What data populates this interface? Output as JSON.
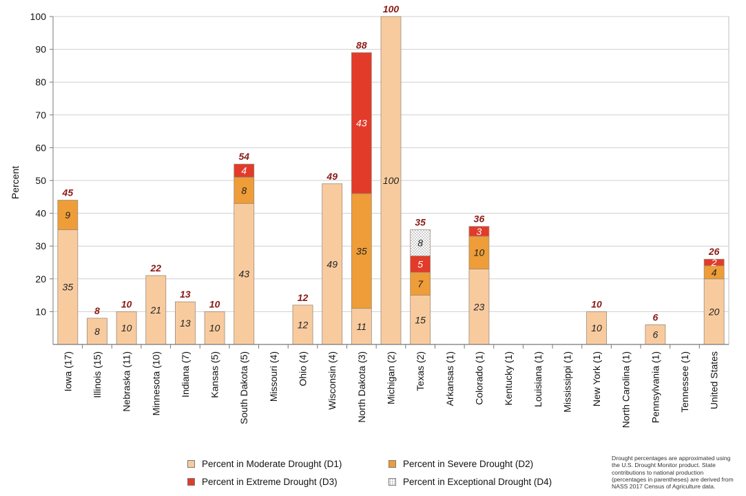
{
  "chart_data": {
    "type": "bar",
    "stacked": true,
    "ylabel": "Percent",
    "ylim": [
      0,
      100
    ],
    "yticks": [
      10,
      20,
      30,
      40,
      50,
      60,
      70,
      80,
      90,
      100
    ],
    "grid": true,
    "legend_position": "bottom",
    "categories": [
      "Iowa (17)",
      "Illinois (15)",
      "Nebraska (11)",
      "Minnesota (10)",
      "Indiana (7)",
      "Kansas (5)",
      "South Dakota (5)",
      "Missouri (4)",
      "Ohio (4)",
      "Wisconsin (4)",
      "North Dakota (3)",
      "Michigan (2)",
      "Texas (2)",
      "Arkansas (1)",
      "Colorado (1)",
      "Kentucky (1)",
      "Louisiana (1)",
      "Mississippi (1)",
      "New York (1)",
      "North Carolina (1)",
      "Pennsylvania (1)",
      "Tennessee (1)",
      "United States"
    ],
    "totals": [
      45,
      8,
      10,
      22,
      13,
      10,
      54,
      null,
      12,
      49,
      88,
      100,
      35,
      null,
      36,
      null,
      null,
      null,
      10,
      null,
      6,
      null,
      26
    ],
    "series": [
      {
        "name": "Percent in Moderate Drought (D1)",
        "color": "#f8cb9f",
        "values": [
          35,
          8,
          10,
          21,
          13,
          10,
          43,
          0,
          12,
          49,
          11,
          100,
          15,
          0,
          23,
          0,
          0,
          0,
          10,
          0,
          6,
          0,
          20
        ]
      },
      {
        "name": "Percent in Severe Drought (D2)",
        "color": "#ee9d38",
        "values": [
          9,
          0,
          0,
          0,
          0,
          0,
          8,
          0,
          0,
          0,
          35,
          0,
          7,
          0,
          10,
          0,
          0,
          0,
          0,
          0,
          0,
          0,
          4
        ]
      },
      {
        "name": "Percent in Extreme Drought (D3)",
        "color": "#e23b2a",
        "values": [
          0,
          0,
          0,
          0,
          0,
          0,
          4,
          0,
          0,
          0,
          43,
          0,
          5,
          0,
          3,
          0,
          0,
          0,
          0,
          0,
          0,
          0,
          2
        ]
      },
      {
        "name": "Percent in Exceptional Drought (D4)",
        "color": "#ffffff",
        "values": [
          0,
          0,
          0,
          0,
          0,
          0,
          0,
          0,
          0,
          0,
          0,
          0,
          8,
          0,
          0,
          0,
          0,
          0,
          0,
          0,
          0,
          0,
          0
        ]
      }
    ]
  },
  "note": "Drought percentages are approximated using the U.S. Drought Monitor product. State contributions to national production (percentages in parentheses) are derived from NASS 2017 Census of Agriculture data."
}
